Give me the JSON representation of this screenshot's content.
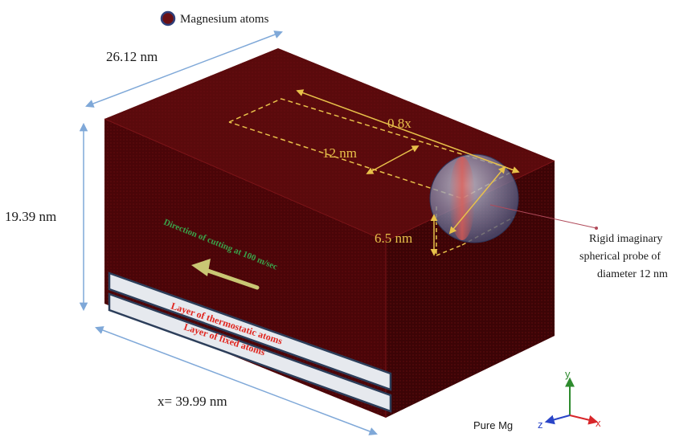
{
  "legend": {
    "marker_label": "Magnesium atoms"
  },
  "dimensions": {
    "depth": "26.12 nm",
    "height": "19.39 nm",
    "length": "x= 39.99 nm"
  },
  "cut": {
    "travel": "0.8x",
    "width": "12 nm",
    "depth": "6.5 nm"
  },
  "probe_callout": [
    "Rigid imaginary",
    "spherical probe of",
    "diameter  12 nm"
  ],
  "direction_text": "Direction of cutting at 100 m/sec",
  "layers": {
    "thermostatic": "Layer of thermostatic atoms",
    "fixed": "Layer of fixed atoms"
  },
  "material": "Pure Mg",
  "axes": {
    "y": "y",
    "z": "z",
    "x": "x"
  },
  "colors": {
    "block_front": "#4a0508",
    "block_top": "#5a0a0c",
    "block_side": "#3c0406",
    "gold": "#e8c14a",
    "arrow_blue": "#7fa8d8",
    "layer_face": "#e6e9ee",
    "layer_edge": "#2c3e5a"
  }
}
